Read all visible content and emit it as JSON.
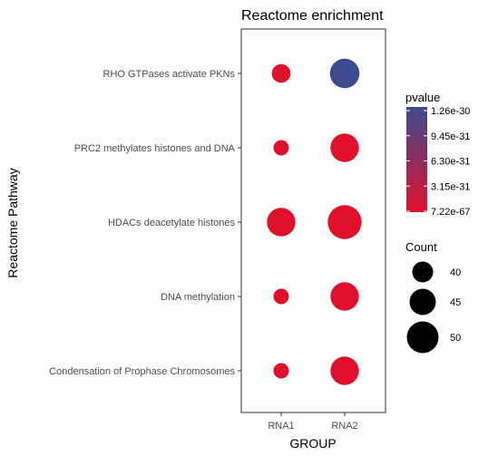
{
  "chart_data": {
    "type": "scatter",
    "title": "Reactome enrichment",
    "xlabel": "GROUP",
    "ylabel": "Reactome Pathway",
    "categories_x": [
      "RNA1",
      "RNA2"
    ],
    "categories_y": [
      "RHO GTPases activate PKNs",
      "PRC2 methylates histones and DNA",
      "HDACs deacetylate histones",
      "DNA methylation",
      "Condensation of Prophase Chromosomes"
    ],
    "points": [
      {
        "x": "RNA1",
        "y": "RHO GTPases activate PKNs",
        "count": 38,
        "pvalue": 7.22e-67
      },
      {
        "x": "RNA2",
        "y": "RHO GTPases activate PKNs",
        "count": 48,
        "pvalue": 1.26e-30
      },
      {
        "x": "RNA1",
        "y": "PRC2 methylates histones and DNA",
        "count": 35,
        "pvalue": 7.22e-67
      },
      {
        "x": "RNA2",
        "y": "PRC2 methylates histones and DNA",
        "count": 47,
        "pvalue": 7.22e-67
      },
      {
        "x": "RNA1",
        "y": "HDACs deacetylate histones",
        "count": 47,
        "pvalue": 7.22e-67
      },
      {
        "x": "RNA2",
        "y": "HDACs deacetylate histones",
        "count": 52,
        "pvalue": 7.22e-67
      },
      {
        "x": "RNA1",
        "y": "DNA methylation",
        "count": 35,
        "pvalue": 7.22e-67
      },
      {
        "x": "RNA2",
        "y": "DNA methylation",
        "count": 47,
        "pvalue": 7.22e-67
      },
      {
        "x": "RNA1",
        "y": "Condensation of Prophase Chromosomes",
        "count": 35,
        "pvalue": 7.22e-67
      },
      {
        "x": "RNA2",
        "y": "Condensation of Prophase Chromosomes",
        "count": 47,
        "pvalue": 7.22e-67
      }
    ],
    "color_legend": {
      "title": "pvalue",
      "labels": [
        "1.26e-30",
        "9.45e-31",
        "6.30e-31",
        "3.15e-31",
        "7.22e-67"
      ],
      "low_color": "#e0102a",
      "high_color": "#3d4a8f"
    },
    "size_legend": {
      "title": "Count",
      "values": [
        40,
        45,
        50
      ]
    },
    "grid": false,
    "legend_position": "right"
  }
}
